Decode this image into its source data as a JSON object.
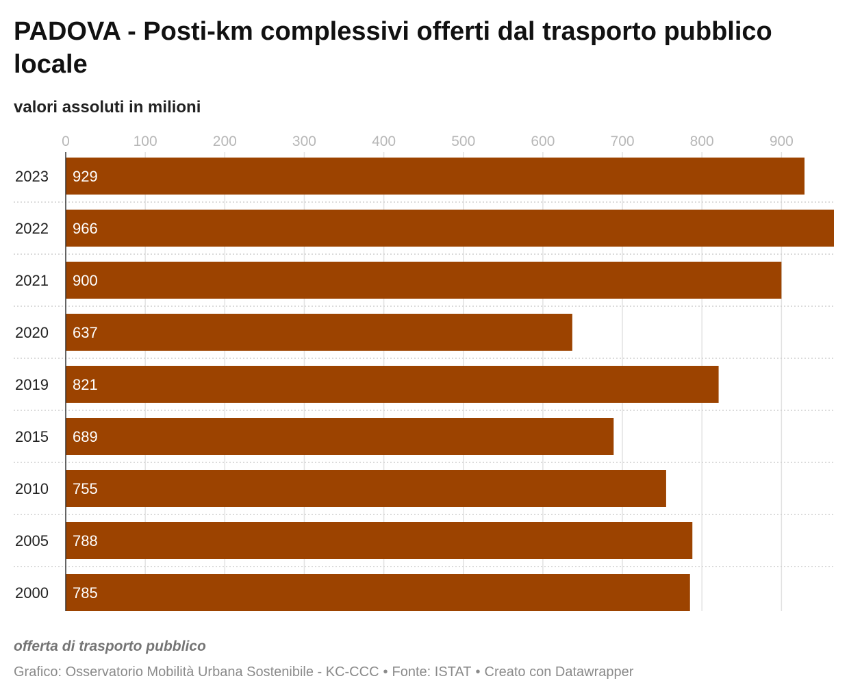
{
  "header": {
    "title": "PADOVA - Posti-km complessivi offerti dal trasporto pubblico locale",
    "subtitle": "valori assoluti in milioni"
  },
  "chart_data": {
    "type": "bar",
    "orientation": "horizontal",
    "categories": [
      "2023",
      "2022",
      "2021",
      "2020",
      "2019",
      "2015",
      "2010",
      "2005",
      "2000"
    ],
    "values": [
      929,
      966,
      900,
      637,
      821,
      689,
      755,
      788,
      785
    ],
    "x_ticks": [
      0,
      100,
      200,
      300,
      400,
      500,
      600,
      700,
      800,
      900
    ],
    "xlim": [
      0,
      966
    ],
    "grid": true,
    "bar_color": "#9c4300",
    "value_label_color": "#ffffff",
    "axis_tick_color": "#b7b7b7"
  },
  "notes": {
    "description": "offerta di trasporto pubblico"
  },
  "footer": {
    "chart_credit": "Grafico: Osservatorio Mobilità Urbana Sostenibile - KC-CCC",
    "source": "Fonte: ISTAT",
    "created_with": "Creato con Datawrapper",
    "separator": "•"
  }
}
